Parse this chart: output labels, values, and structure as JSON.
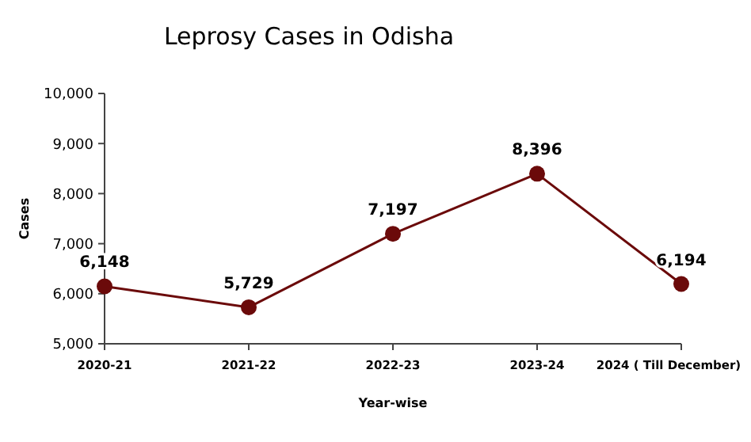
{
  "chart_data": {
    "type": "line",
    "title": "Leprosy Cases in Odisha",
    "xlabel": "Year-wise",
    "ylabel": "Cases",
    "categories": [
      "2020-21",
      "2021-22",
      "2022-23",
      "2023-24",
      "2024 ( Till December)"
    ],
    "series": [
      {
        "color": "#6b0a0a",
        "values": [
          6148,
          5729,
          7197,
          8396,
          6194
        ]
      }
    ],
    "value_labels": [
      "6,148",
      "5,729",
      "7,197",
      "8,396",
      "6,194"
    ],
    "ylim": [
      5000,
      10000
    ],
    "yticks": [
      {
        "value": 5000,
        "label": "5,000"
      },
      {
        "value": 6000,
        "label": "6,000"
      },
      {
        "value": 7000,
        "label": "7,000"
      },
      {
        "value": 8000,
        "label": "8,000"
      },
      {
        "value": 9000,
        "label": "9,000"
      },
      {
        "value": 10000,
        "label": "10,000"
      }
    ],
    "marker": "circle",
    "line_style": "solid",
    "grid": false
  }
}
